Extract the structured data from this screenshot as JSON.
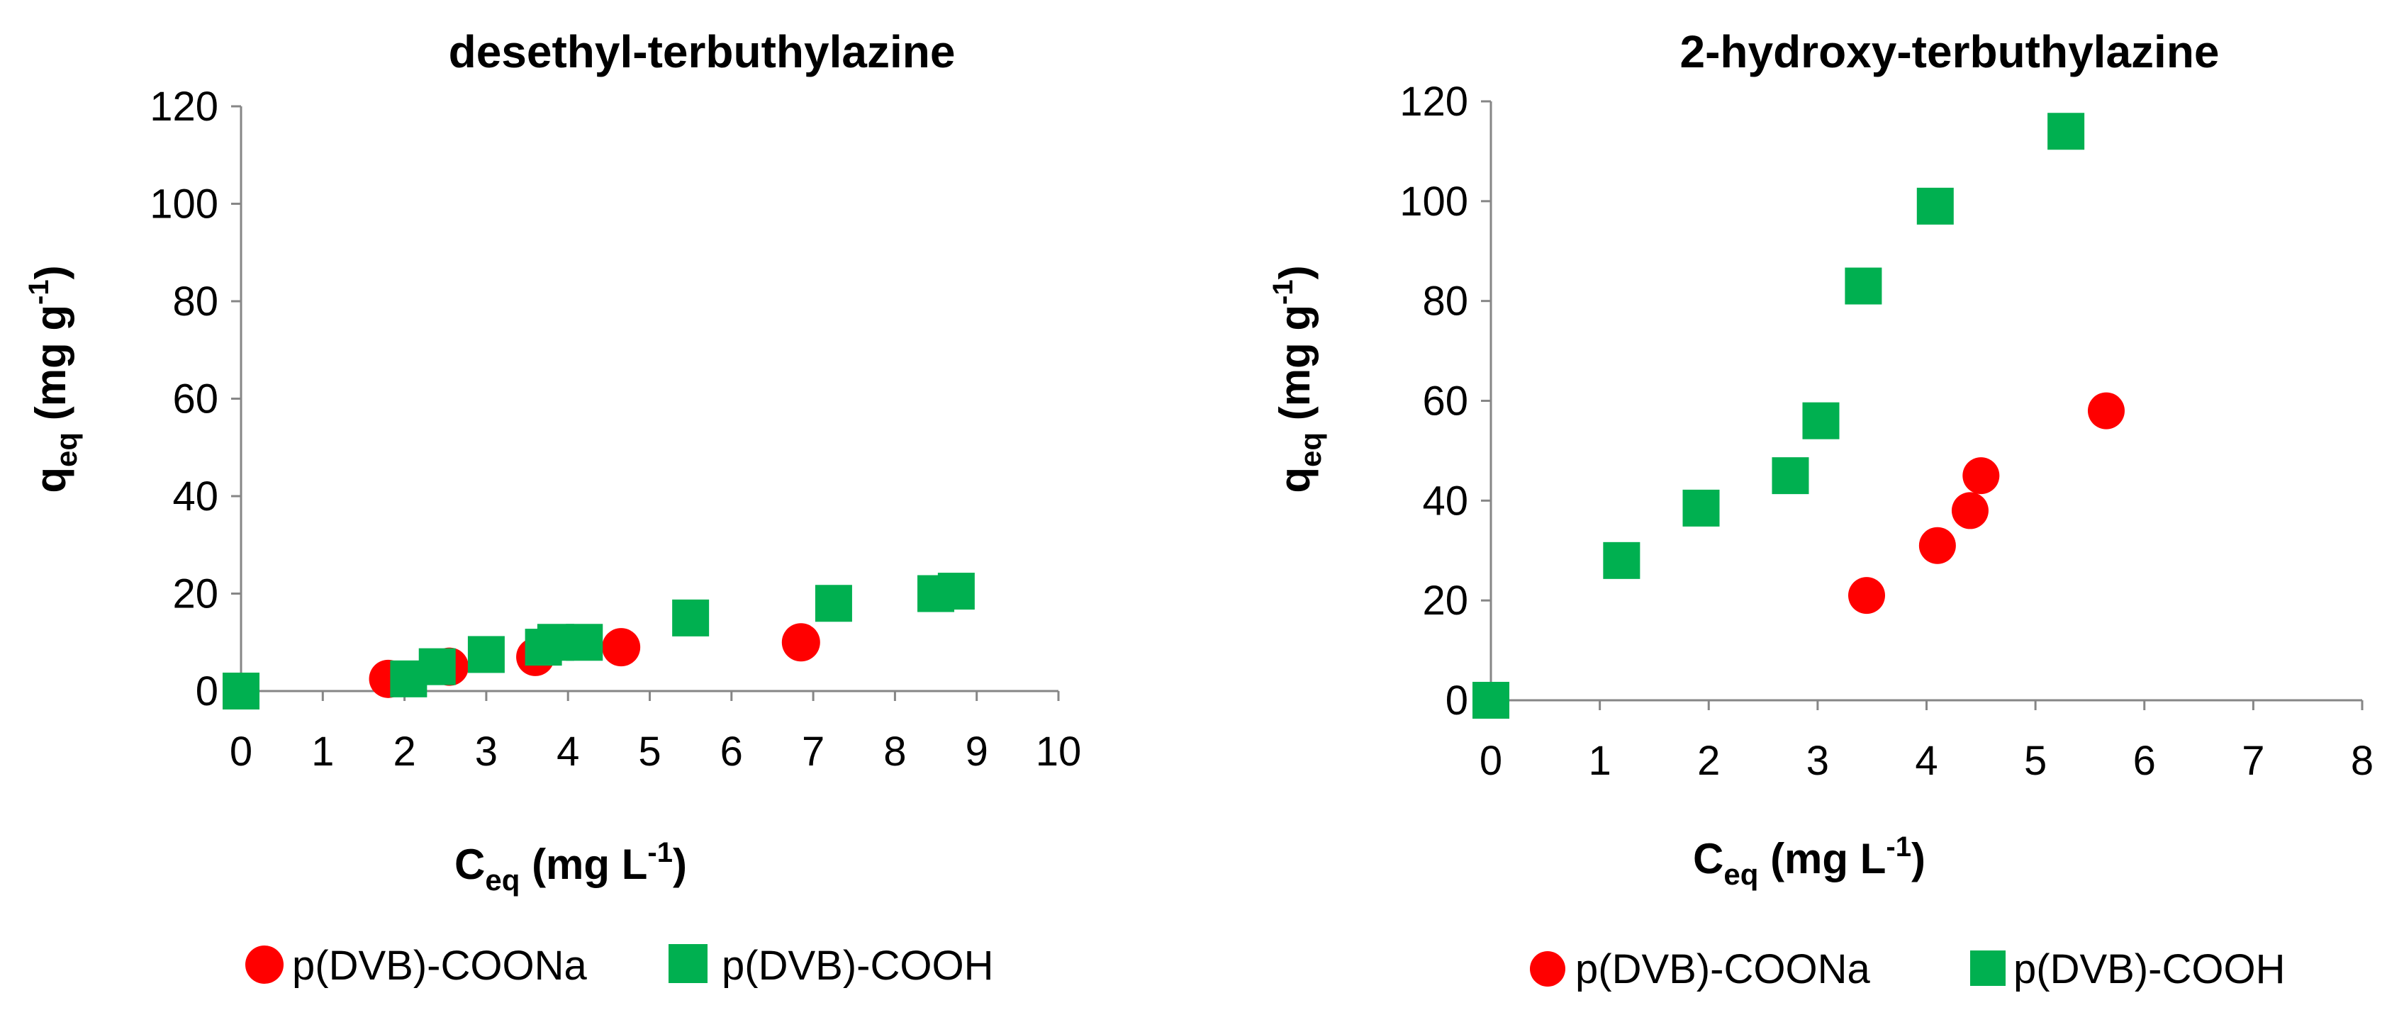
{
  "colors": {
    "sodium": "#ff0000",
    "acid": "#00b050",
    "axis": "#868686"
  },
  "chart_data": [
    {
      "type": "scatter",
      "title": "desethyl-terbuthylazine",
      "xlabel": {
        "base": "C",
        "sub": "eq",
        "unit_pre": " (mg L",
        "sup": "-1",
        "unit_post": ")"
      },
      "ylabel": {
        "base": "q",
        "sub": "eq",
        "unit_pre": " (mg g",
        "sup": "-1",
        "unit_post": ")"
      },
      "xlim": [
        0,
        10
      ],
      "ylim": [
        0,
        120
      ],
      "xticks": [
        0,
        1,
        2,
        3,
        4,
        5,
        6,
        7,
        8,
        9,
        10
      ],
      "yticks": [
        0,
        20,
        40,
        60,
        80,
        100,
        120
      ],
      "legend_position": "bottom",
      "series": [
        {
          "name": "p(DVB)-COONa",
          "marker": "circle",
          "x": [
            1.8,
            2.55,
            3.6,
            4.65,
            6.85
          ],
          "y": [
            2.5,
            5.0,
            7.0,
            9.0,
            10.0
          ]
        },
        {
          "name": "p(DVB)-COOH",
          "marker": "square",
          "x": [
            0,
            2.05,
            2.4,
            3.0,
            3.7,
            3.85,
            4.2,
            5.5,
            7.25,
            8.5,
            8.75
          ],
          "y": [
            0,
            2.5,
            5.0,
            7.5,
            9.0,
            10.0,
            10.0,
            15.0,
            18.0,
            20.0,
            20.5
          ]
        }
      ]
    },
    {
      "type": "scatter",
      "title": "2-hydroxy-terbuthylazine",
      "xlabel": {
        "base": "C",
        "sub": "eq",
        "unit_pre": " (mg L",
        "sup": "-1",
        "unit_post": ")"
      },
      "ylabel": {
        "base": "q",
        "sub": "eq",
        "unit_pre": " (mg g",
        "sup": "-1",
        "unit_post": ")"
      },
      "xlim": [
        0,
        8
      ],
      "ylim": [
        0,
        120
      ],
      "xticks": [
        0,
        1,
        2,
        3,
        4,
        5,
        6,
        7,
        8
      ],
      "yticks": [
        0,
        20,
        40,
        60,
        80,
        100,
        120
      ],
      "legend_position": "bottom",
      "series": [
        {
          "name": "p(DVB)-COONa",
          "marker": "circle",
          "x": [
            3.45,
            4.1,
            4.4,
            4.5,
            5.65
          ],
          "y": [
            21,
            31,
            38,
            45,
            58
          ]
        },
        {
          "name": "p(DVB)-COOH",
          "marker": "square",
          "x": [
            0,
            1.2,
            1.93,
            2.75,
            3.03,
            3.42,
            4.08,
            5.28
          ],
          "y": [
            0,
            28,
            38.5,
            45,
            56,
            83,
            99,
            114
          ]
        }
      ]
    }
  ]
}
